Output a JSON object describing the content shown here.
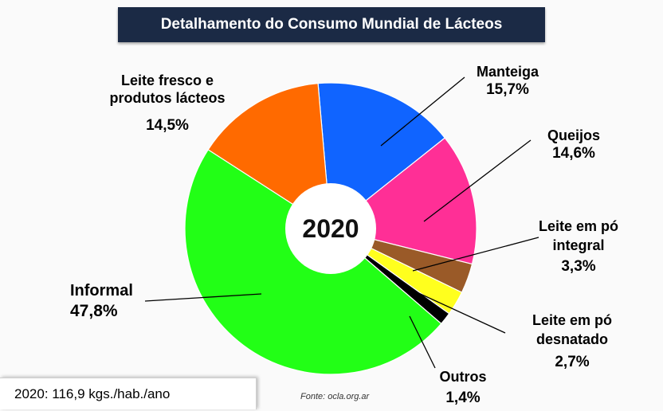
{
  "chart_data": {
    "type": "pie",
    "variant": "donut",
    "title": "Detalhamento do Consumo Mundial de Lácteos",
    "center_label": "2020",
    "slices": [
      {
        "label_lines": [
          "Manteiga"
        ],
        "value_text": "15,7%",
        "value": 15.7,
        "color": "#1064ff"
      },
      {
        "label_lines": [
          "Queijos"
        ],
        "value_text": "14,6%",
        "value": 14.6,
        "color": "#ff2f96"
      },
      {
        "label_lines": [
          "Leite em pó",
          "integral"
        ],
        "value_text": "3,3%",
        "value": 3.3,
        "color": "#9a5a28"
      },
      {
        "label_lines": [
          "Leite em pó",
          "desnatado"
        ],
        "value_text": "2,7%",
        "value": 2.7,
        "color": "#ffff1e"
      },
      {
        "label_lines": [
          "Outros"
        ],
        "value_text": "1,4%",
        "value": 1.4,
        "color": "#000000"
      },
      {
        "label_lines": [
          "Informal"
        ],
        "value_text": "47,8%",
        "value": 47.8,
        "color": "#22ff16"
      },
      {
        "label_lines": [
          "Leite fresco e",
          "produtos lácteos"
        ],
        "value_text": "14,5%",
        "value": 14.5,
        "color": "#ff6a00"
      }
    ]
  },
  "footnote": "2020: 116,9 kgs./hab./ano",
  "source": "Fonte: ocla.org.ar"
}
